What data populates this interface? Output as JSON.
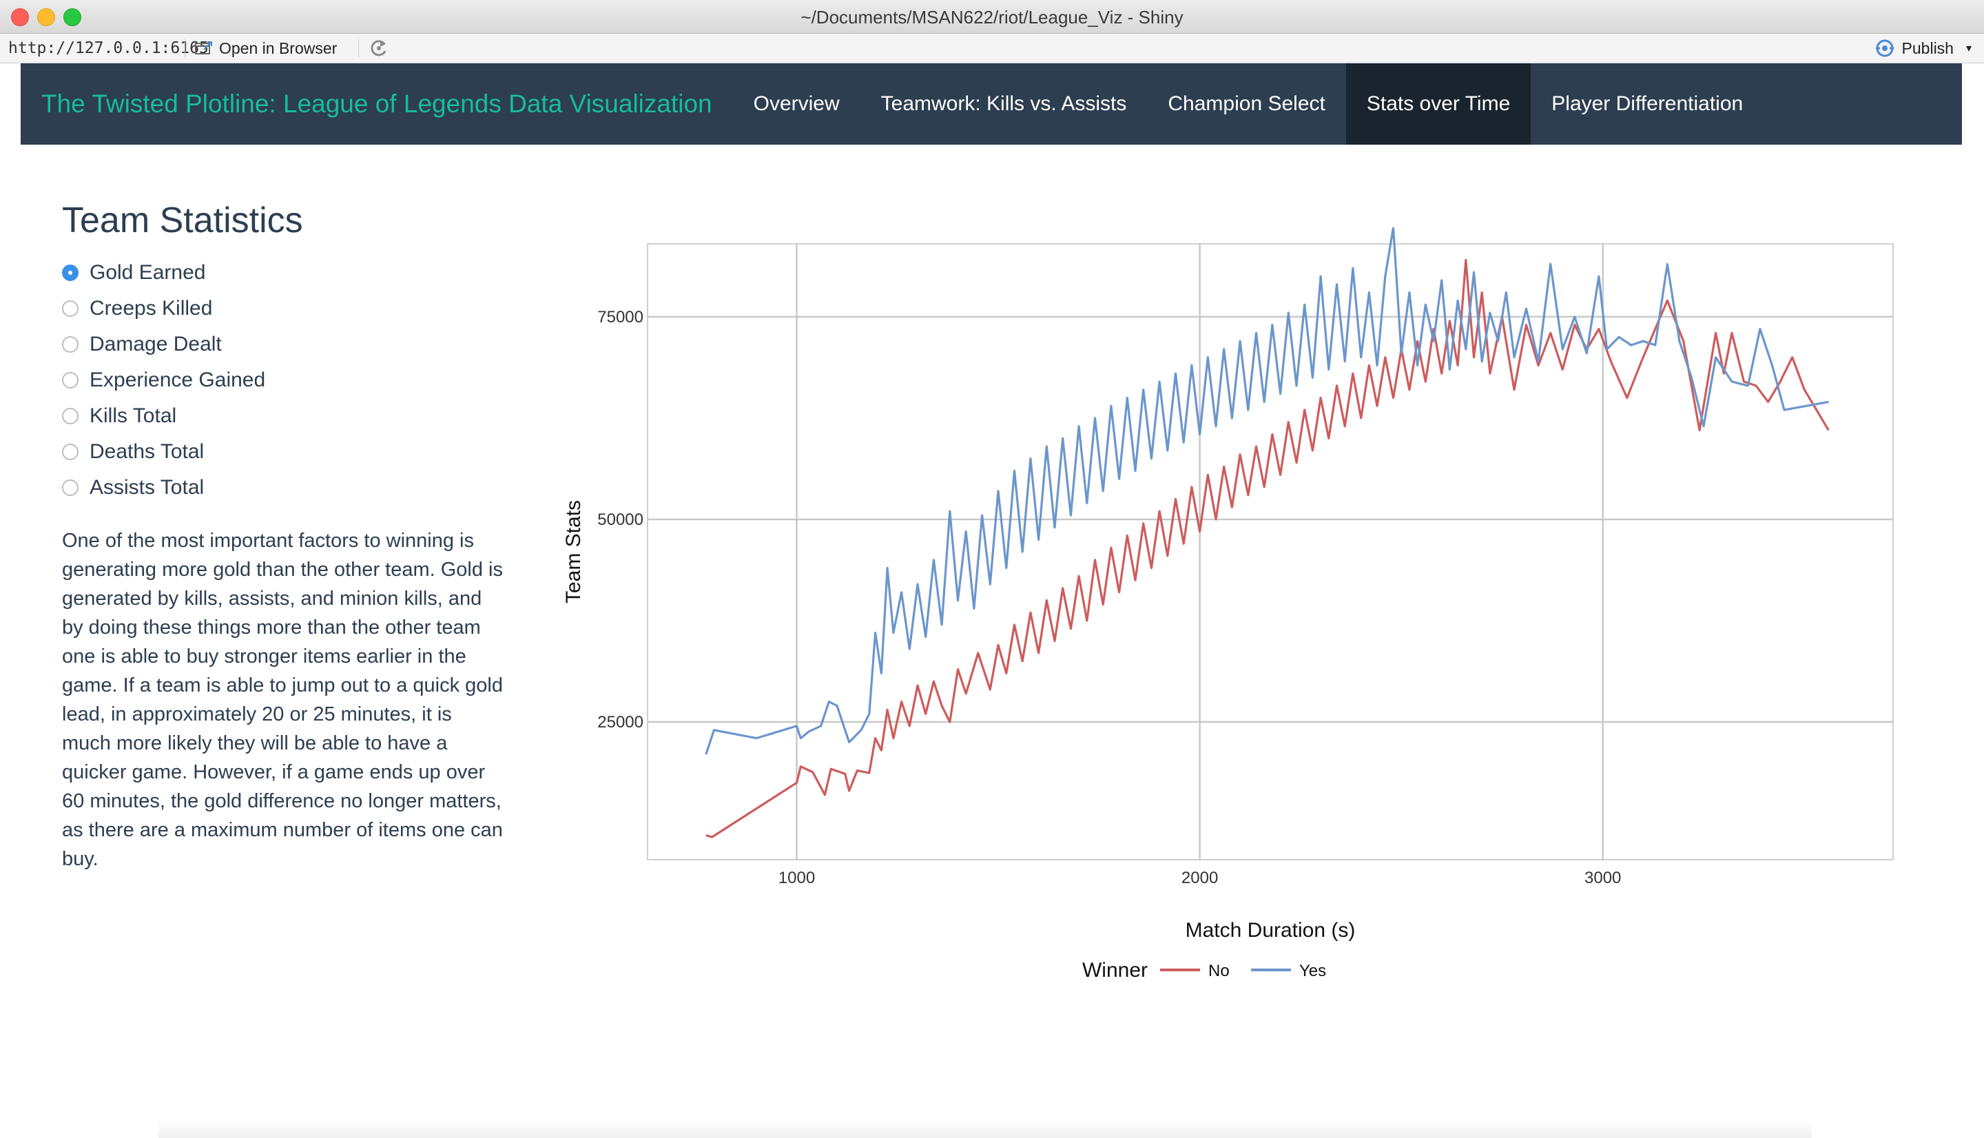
{
  "window": {
    "title": "~/Documents/MSAN622/riot/League_Viz - Shiny"
  },
  "toolbar": {
    "url": "http://127.0.0.1:6165",
    "open_in_browser": "Open in Browser",
    "publish": "Publish",
    "publish_caret": "▾"
  },
  "navbar": {
    "brand": "The Twisted Plotline: League of Legends Data Visualization",
    "items": [
      {
        "label": "Overview"
      },
      {
        "label": "Teamwork: Kills vs. Assists"
      },
      {
        "label": "Champion Select"
      },
      {
        "label": "Stats over Time",
        "active": true
      },
      {
        "label": "Player Differentiation"
      }
    ]
  },
  "sidebar": {
    "title": "Team Statistics",
    "options": [
      {
        "label": "Gold Earned",
        "selected": true
      },
      {
        "label": "Creeps Killed",
        "selected": false
      },
      {
        "label": "Damage Dealt",
        "selected": false
      },
      {
        "label": "Experience Gained",
        "selected": false
      },
      {
        "label": "Kills Total",
        "selected": false
      },
      {
        "label": "Deaths Total",
        "selected": false
      },
      {
        "label": "Assists Total",
        "selected": false
      }
    ],
    "description": "One of the most important factors to winning is generating more gold than the other team. Gold is generated by kills, assists, and minion kills, and by doing these things more than the other team one is able to buy stronger items earlier in the game. If a team is able to jump out to a quick gold lead, in approximately 20 or 25 minutes, it is much more likely they will be able to have a quicker game. However, if a game ends up over 60 minutes, the gold difference no longer matters, as there are a maximum number of items one can buy."
  },
  "colors": {
    "navbar_bg": "#2c3e50",
    "navbar_active": "#1a242f",
    "brand": "#18bc9c",
    "series_no": "#cd5c5c",
    "series_yes": "#6b96cc",
    "radio_selected": "#3a8fe8"
  },
  "chart_data": {
    "type": "line",
    "title": "",
    "xlabel": "Match Duration (s)",
    "ylabel": "Team Stats",
    "xlim": [
      630,
      3720
    ],
    "ylim": [
      8000,
      84000
    ],
    "xticks": [
      1000,
      2000,
      3000
    ],
    "yticks": [
      25000,
      50000,
      75000
    ],
    "grid": true,
    "legend": {
      "title": "Winner",
      "position": "bottom"
    },
    "series": [
      {
        "name": "No",
        "color": "#cd5c5c",
        "points": [
          [
            775,
            11000
          ],
          [
            790,
            10800
          ],
          [
            1000,
            17500
          ],
          [
            1010,
            19500
          ],
          [
            1040,
            18800
          ],
          [
            1070,
            16000
          ],
          [
            1085,
            19200
          ],
          [
            1120,
            18600
          ],
          [
            1130,
            16500
          ],
          [
            1150,
            19000
          ],
          [
            1180,
            18700
          ],
          [
            1195,
            23000
          ],
          [
            1210,
            21500
          ],
          [
            1225,
            26500
          ],
          [
            1240,
            23000
          ],
          [
            1260,
            27500
          ],
          [
            1280,
            24500
          ],
          [
            1300,
            29500
          ],
          [
            1320,
            26000
          ],
          [
            1340,
            30000
          ],
          [
            1360,
            27000
          ],
          [
            1380,
            25000
          ],
          [
            1400,
            31500
          ],
          [
            1420,
            28500
          ],
          [
            1450,
            33500
          ],
          [
            1480,
            29000
          ],
          [
            1500,
            34500
          ],
          [
            1520,
            31000
          ],
          [
            1540,
            37000
          ],
          [
            1560,
            32500
          ],
          [
            1580,
            38500
          ],
          [
            1600,
            33500
          ],
          [
            1620,
            40000
          ],
          [
            1640,
            35000
          ],
          [
            1660,
            41500
          ],
          [
            1680,
            36500
          ],
          [
            1700,
            43000
          ],
          [
            1720,
            37500
          ],
          [
            1740,
            45000
          ],
          [
            1760,
            39500
          ],
          [
            1780,
            46500
          ],
          [
            1800,
            41000
          ],
          [
            1820,
            48000
          ],
          [
            1840,
            42500
          ],
          [
            1860,
            49500
          ],
          [
            1880,
            44000
          ],
          [
            1900,
            51000
          ],
          [
            1920,
            45500
          ],
          [
            1940,
            52500
          ],
          [
            1960,
            47000
          ],
          [
            1980,
            54000
          ],
          [
            2000,
            48500
          ],
          [
            2020,
            55500
          ],
          [
            2040,
            50000
          ],
          [
            2060,
            56500
          ],
          [
            2080,
            51500
          ],
          [
            2100,
            58000
          ],
          [
            2120,
            53000
          ],
          [
            2140,
            59000
          ],
          [
            2160,
            54000
          ],
          [
            2180,
            60500
          ],
          [
            2200,
            55500
          ],
          [
            2220,
            62000
          ],
          [
            2240,
            57000
          ],
          [
            2260,
            63500
          ],
          [
            2280,
            58500
          ],
          [
            2300,
            65000
          ],
          [
            2320,
            60000
          ],
          [
            2340,
            66500
          ],
          [
            2360,
            61500
          ],
          [
            2380,
            68000
          ],
          [
            2400,
            62500
          ],
          [
            2420,
            69000
          ],
          [
            2440,
            64000
          ],
          [
            2460,
            70000
          ],
          [
            2480,
            65000
          ],
          [
            2500,
            71000
          ],
          [
            2520,
            66000
          ],
          [
            2540,
            72000
          ],
          [
            2560,
            67000
          ],
          [
            2580,
            73500
          ],
          [
            2600,
            68000
          ],
          [
            2620,
            74500
          ],
          [
            2640,
            69000
          ],
          [
            2660,
            82000
          ],
          [
            2680,
            70000
          ],
          [
            2700,
            78000
          ],
          [
            2720,
            68000
          ],
          [
            2750,
            75000
          ],
          [
            2780,
            66000
          ],
          [
            2810,
            74000
          ],
          [
            2840,
            69000
          ],
          [
            2870,
            73000
          ],
          [
            2900,
            68500
          ],
          [
            2930,
            74000
          ],
          [
            2960,
            71000
          ],
          [
            2990,
            73500
          ],
          [
            3020,
            69500
          ],
          [
            3060,
            65000
          ],
          [
            3100,
            70000
          ],
          [
            3160,
            77000
          ],
          [
            3200,
            72000
          ],
          [
            3240,
            61000
          ],
          [
            3280,
            73000
          ],
          [
            3300,
            68000
          ],
          [
            3320,
            73000
          ],
          [
            3350,
            67000
          ],
          [
            3380,
            66500
          ],
          [
            3410,
            64500
          ],
          [
            3440,
            67000
          ],
          [
            3470,
            70000
          ],
          [
            3500,
            66000
          ],
          [
            3560,
            61000
          ]
        ]
      },
      {
        "name": "Yes",
        "color": "#6b96cc",
        "points": [
          [
            775,
            21000
          ],
          [
            795,
            24000
          ],
          [
            900,
            23000
          ],
          [
            1000,
            24500
          ],
          [
            1010,
            23000
          ],
          [
            1030,
            23800
          ],
          [
            1060,
            24500
          ],
          [
            1080,
            27500
          ],
          [
            1100,
            27000
          ],
          [
            1130,
            22500
          ],
          [
            1160,
            24000
          ],
          [
            1180,
            26000
          ],
          [
            1195,
            36000
          ],
          [
            1210,
            31000
          ],
          [
            1225,
            44000
          ],
          [
            1240,
            36000
          ],
          [
            1260,
            41000
          ],
          [
            1280,
            34000
          ],
          [
            1300,
            42000
          ],
          [
            1320,
            35500
          ],
          [
            1340,
            45000
          ],
          [
            1360,
            37000
          ],
          [
            1380,
            51000
          ],
          [
            1400,
            40000
          ],
          [
            1420,
            48500
          ],
          [
            1440,
            39000
          ],
          [
            1460,
            50500
          ],
          [
            1480,
            42000
          ],
          [
            1500,
            53500
          ],
          [
            1520,
            44000
          ],
          [
            1540,
            56000
          ],
          [
            1560,
            46000
          ],
          [
            1580,
            57500
          ],
          [
            1600,
            47500
          ],
          [
            1620,
            59000
          ],
          [
            1640,
            49000
          ],
          [
            1660,
            60000
          ],
          [
            1680,
            50500
          ],
          [
            1700,
            61500
          ],
          [
            1720,
            52000
          ],
          [
            1740,
            62500
          ],
          [
            1760,
            53500
          ],
          [
            1780,
            64000
          ],
          [
            1800,
            55000
          ],
          [
            1820,
            65000
          ],
          [
            1840,
            56000
          ],
          [
            1860,
            66000
          ],
          [
            1880,
            57500
          ],
          [
            1900,
            67000
          ],
          [
            1920,
            58500
          ],
          [
            1940,
            68000
          ],
          [
            1960,
            59500
          ],
          [
            1980,
            69000
          ],
          [
            2000,
            60500
          ],
          [
            2020,
            70000
          ],
          [
            2040,
            61500
          ],
          [
            2060,
            71000
          ],
          [
            2080,
            62500
          ],
          [
            2100,
            72000
          ],
          [
            2120,
            63500
          ],
          [
            2140,
            73000
          ],
          [
            2160,
            64500
          ],
          [
            2180,
            74000
          ],
          [
            2200,
            65500
          ],
          [
            2220,
            75500
          ],
          [
            2240,
            66500
          ],
          [
            2260,
            76500
          ],
          [
            2280,
            67500
          ],
          [
            2300,
            80000
          ],
          [
            2320,
            68500
          ],
          [
            2340,
            79000
          ],
          [
            2360,
            69500
          ],
          [
            2380,
            81000
          ],
          [
            2400,
            70000
          ],
          [
            2420,
            78000
          ],
          [
            2440,
            69000
          ],
          [
            2460,
            80000
          ],
          [
            2480,
            86000
          ],
          [
            2500,
            70500
          ],
          [
            2520,
            78000
          ],
          [
            2540,
            69000
          ],
          [
            2560,
            76500
          ],
          [
            2580,
            72000
          ],
          [
            2600,
            79500
          ],
          [
            2620,
            68500
          ],
          [
            2640,
            77000
          ],
          [
            2660,
            71000
          ],
          [
            2680,
            80500
          ],
          [
            2700,
            69500
          ],
          [
            2720,
            75500
          ],
          [
            2740,
            72000
          ],
          [
            2760,
            78000
          ],
          [
            2780,
            70000
          ],
          [
            2810,
            76000
          ],
          [
            2840,
            69500
          ],
          [
            2870,
            81500
          ],
          [
            2900,
            71000
          ],
          [
            2930,
            75000
          ],
          [
            2960,
            70500
          ],
          [
            2990,
            80000
          ],
          [
            3010,
            71000
          ],
          [
            3040,
            72500
          ],
          [
            3070,
            71500
          ],
          [
            3100,
            72000
          ],
          [
            3130,
            71500
          ],
          [
            3160,
            81500
          ],
          [
            3190,
            72000
          ],
          [
            3220,
            67500
          ],
          [
            3250,
            61500
          ],
          [
            3280,
            70000
          ],
          [
            3320,
            67000
          ],
          [
            3360,
            66500
          ],
          [
            3390,
            73500
          ],
          [
            3420,
            69000
          ],
          [
            3450,
            63500
          ],
          [
            3560,
            64500
          ]
        ]
      }
    ]
  }
}
